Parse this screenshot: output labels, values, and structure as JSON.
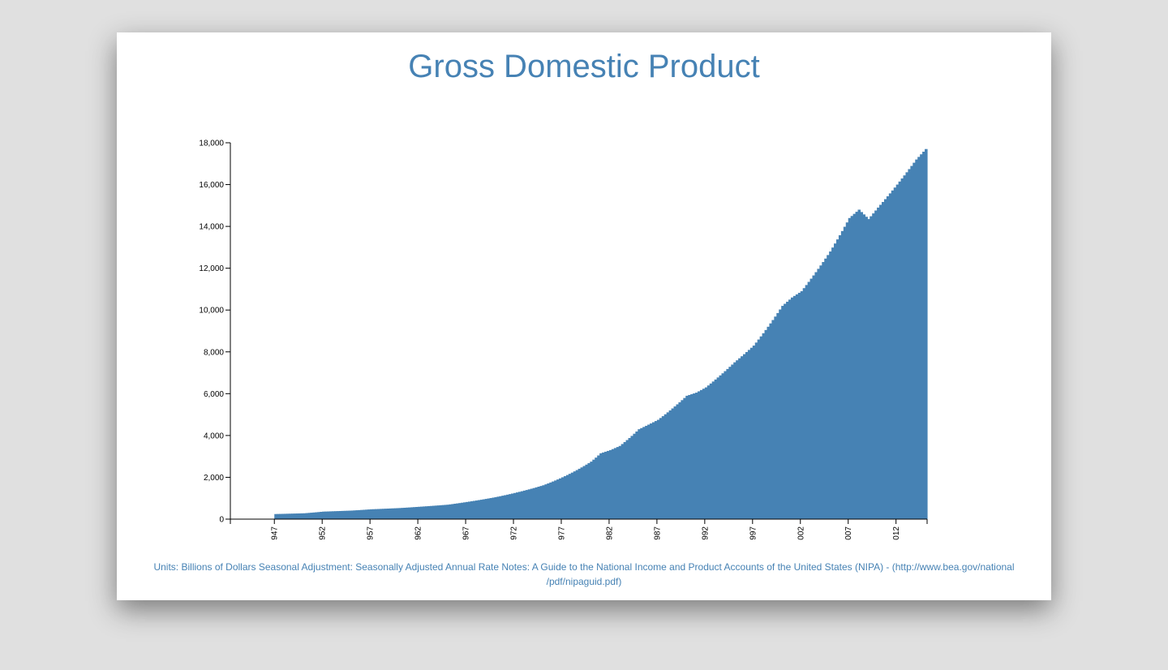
{
  "title": "Gross Domestic Product",
  "notes": {
    "line1": "Units: Billions of Dollars Seasonal Adjustment: Seasonally Adjusted Annual Rate Notes: A Guide to the National Income and Product Accounts of the United States (NIPA) - (http://www.bea.gov/national",
    "line2": "/pdf/nipaguid.pdf)"
  },
  "colors": {
    "bar": "#4682b4",
    "background": "#e0e0e0",
    "card": "#ffffff"
  },
  "chart_data": {
    "type": "bar",
    "xlim": [
      1947,
      2015.25
    ],
    "ylim": [
      0,
      18000
    ],
    "yticks": [
      0,
      2000,
      4000,
      6000,
      8000,
      10000,
      12000,
      14000,
      16000,
      18000
    ],
    "ytick_labels": [
      "0",
      "2,000",
      "4,000",
      "6,000",
      "8,000",
      "10,000",
      "12,000",
      "14,000",
      "16,000",
      "18,000"
    ],
    "xticks": [
      1947,
      1952,
      1957,
      1962,
      1967,
      1972,
      1977,
      1982,
      1987,
      1992,
      1997,
      2002,
      2007,
      2012
    ],
    "xtick_labels": [
      "947",
      "952",
      "957",
      "962",
      "967",
      "972",
      "977",
      "982",
      "987",
      "992",
      "997",
      "002",
      "007",
      "012"
    ],
    "anchors": [
      [
        1947,
        243
      ],
      [
        1950,
        280
      ],
      [
        1952,
        360
      ],
      [
        1955,
        410
      ],
      [
        1957,
        470
      ],
      [
        1960,
        530
      ],
      [
        1962,
        590
      ],
      [
        1965,
        690
      ],
      [
        1967,
        820
      ],
      [
        1970,
        1050
      ],
      [
        1972,
        1250
      ],
      [
        1975,
        1620
      ],
      [
        1977,
        2000
      ],
      [
        1980,
        2750
      ],
      [
        1981,
        3150
      ],
      [
        1982,
        3300
      ],
      [
        1983,
        3500
      ],
      [
        1985,
        4300
      ],
      [
        1987,
        4750
      ],
      [
        1990,
        5900
      ],
      [
        1991,
        6050
      ],
      [
        1992,
        6300
      ],
      [
        1995,
        7500
      ],
      [
        1997,
        8300
      ],
      [
        2000,
        10200
      ],
      [
        2001,
        10600
      ],
      [
        2002,
        10900
      ],
      [
        2005,
        12800
      ],
      [
        2007,
        14400
      ],
      [
        2008,
        14800
      ],
      [
        2009,
        14350
      ],
      [
        2010,
        14900
      ],
      [
        2012,
        16000
      ],
      [
        2014,
        17200
      ],
      [
        2015,
        17700
      ]
    ]
  }
}
